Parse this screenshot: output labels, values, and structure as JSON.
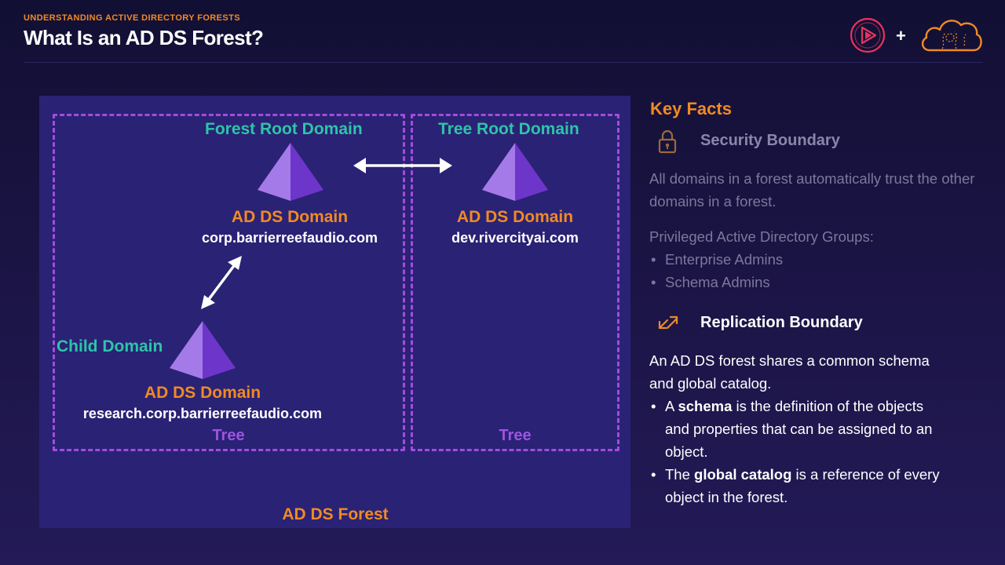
{
  "header": {
    "kicker": "UNDERSTANDING ACTIVE DIRECTORY FORESTS",
    "title": "What Is an AD DS Forest?"
  },
  "logos": {
    "plus": "+",
    "play_icon": "play-icon",
    "cloud_icon": "cloud-icon"
  },
  "diagram": {
    "forest_label": "AD DS Forest",
    "left_tree": {
      "label": "Tree",
      "root": {
        "role": "Forest Root Domain",
        "type": "AD DS Domain",
        "fqdn": "corp.barrierreefaudio.com"
      },
      "child": {
        "role": "Child Domain",
        "type": "AD DS Domain",
        "fqdn": "research.corp.barrierreefaudio.com"
      }
    },
    "right_tree": {
      "label": "Tree",
      "root": {
        "role": "Tree Root Domain",
        "type": "AD DS Domain",
        "fqdn": "dev.rivercityai.com"
      }
    }
  },
  "key_facts": {
    "heading": "Key Facts",
    "security": {
      "icon": "lock-icon",
      "title": "Security Boundary",
      "text": "All domains in a forest automatically trust the other domains in a forest.",
      "groups_heading": "Privileged Active Directory Groups:",
      "groups": [
        "Enterprise Admins",
        "Schema Admins"
      ]
    },
    "replication": {
      "icon": "replication-arrows-icon",
      "title": "Replication Boundary",
      "text": "An AD DS forest shares a common schema and global catalog.",
      "bullets": [
        {
          "pre": "A ",
          "bold": "schema",
          "post": " is the definition of the objects and properties that can be assigned to an object."
        },
        {
          "pre": "The ",
          "bold": "global catalog",
          "post": " is a reference of every object in the forest."
        }
      ]
    }
  },
  "colors": {
    "background": "#1c1547",
    "forest_fill": "#2a2275",
    "tree_border": "#a44cdc",
    "teal": "#2ec4a9",
    "orange": "#f08a24",
    "pyramid_light": "#a47ae8",
    "pyramid_dark": "#6d35c9"
  }
}
